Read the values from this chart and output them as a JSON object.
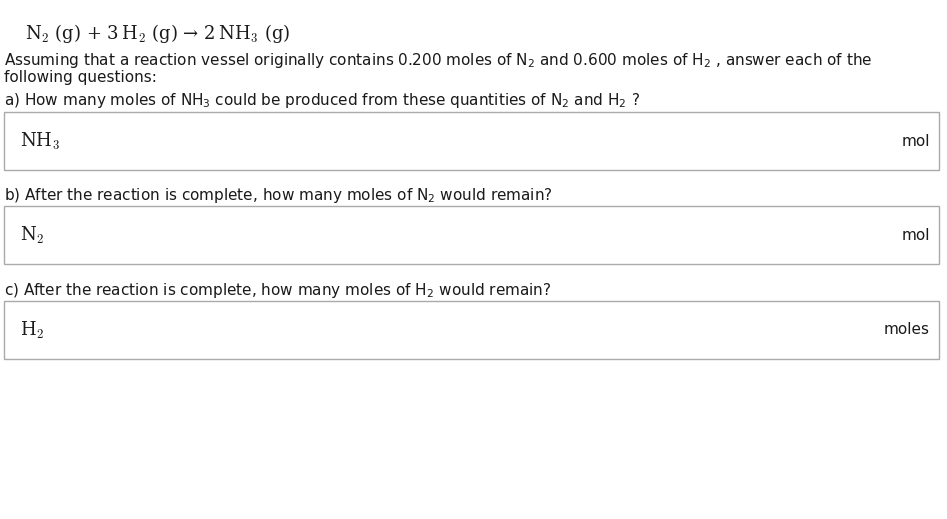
{
  "bg_color": "#ffffff",
  "title_equation": "N$_2$ (g) + 3 H$_2$ (g) → 2 NH$_3$ (g)",
  "intro_text_line1": "Assuming that a reaction vessel originally contains 0.200 moles of N$_2$ and 0.600 moles of H$_2$ , answer each of the",
  "intro_text_line2": "following questions:",
  "q_a_text": "a) How many moles of NH$_3$ could be produced from these quantities of N$_2$ and H$_2$ ?",
  "q_b_text": "b) After the reaction is complete, how many moles of N$_2$ would remain?",
  "q_c_text": "c) After the reaction is complete, how many moles of H$_2$ would remain?",
  "box_a_label": "NH$_3$",
  "box_a_unit": "mol",
  "box_b_label": "N$_2$",
  "box_b_unit": "mol",
  "box_c_label": "H$_2$",
  "box_c_unit": "moles",
  "text_color": "#1a1a1a",
  "box_border_color": "#aaaaaa",
  "font_size_equation": 13,
  "font_size_body": 11,
  "font_size_box_label": 13
}
